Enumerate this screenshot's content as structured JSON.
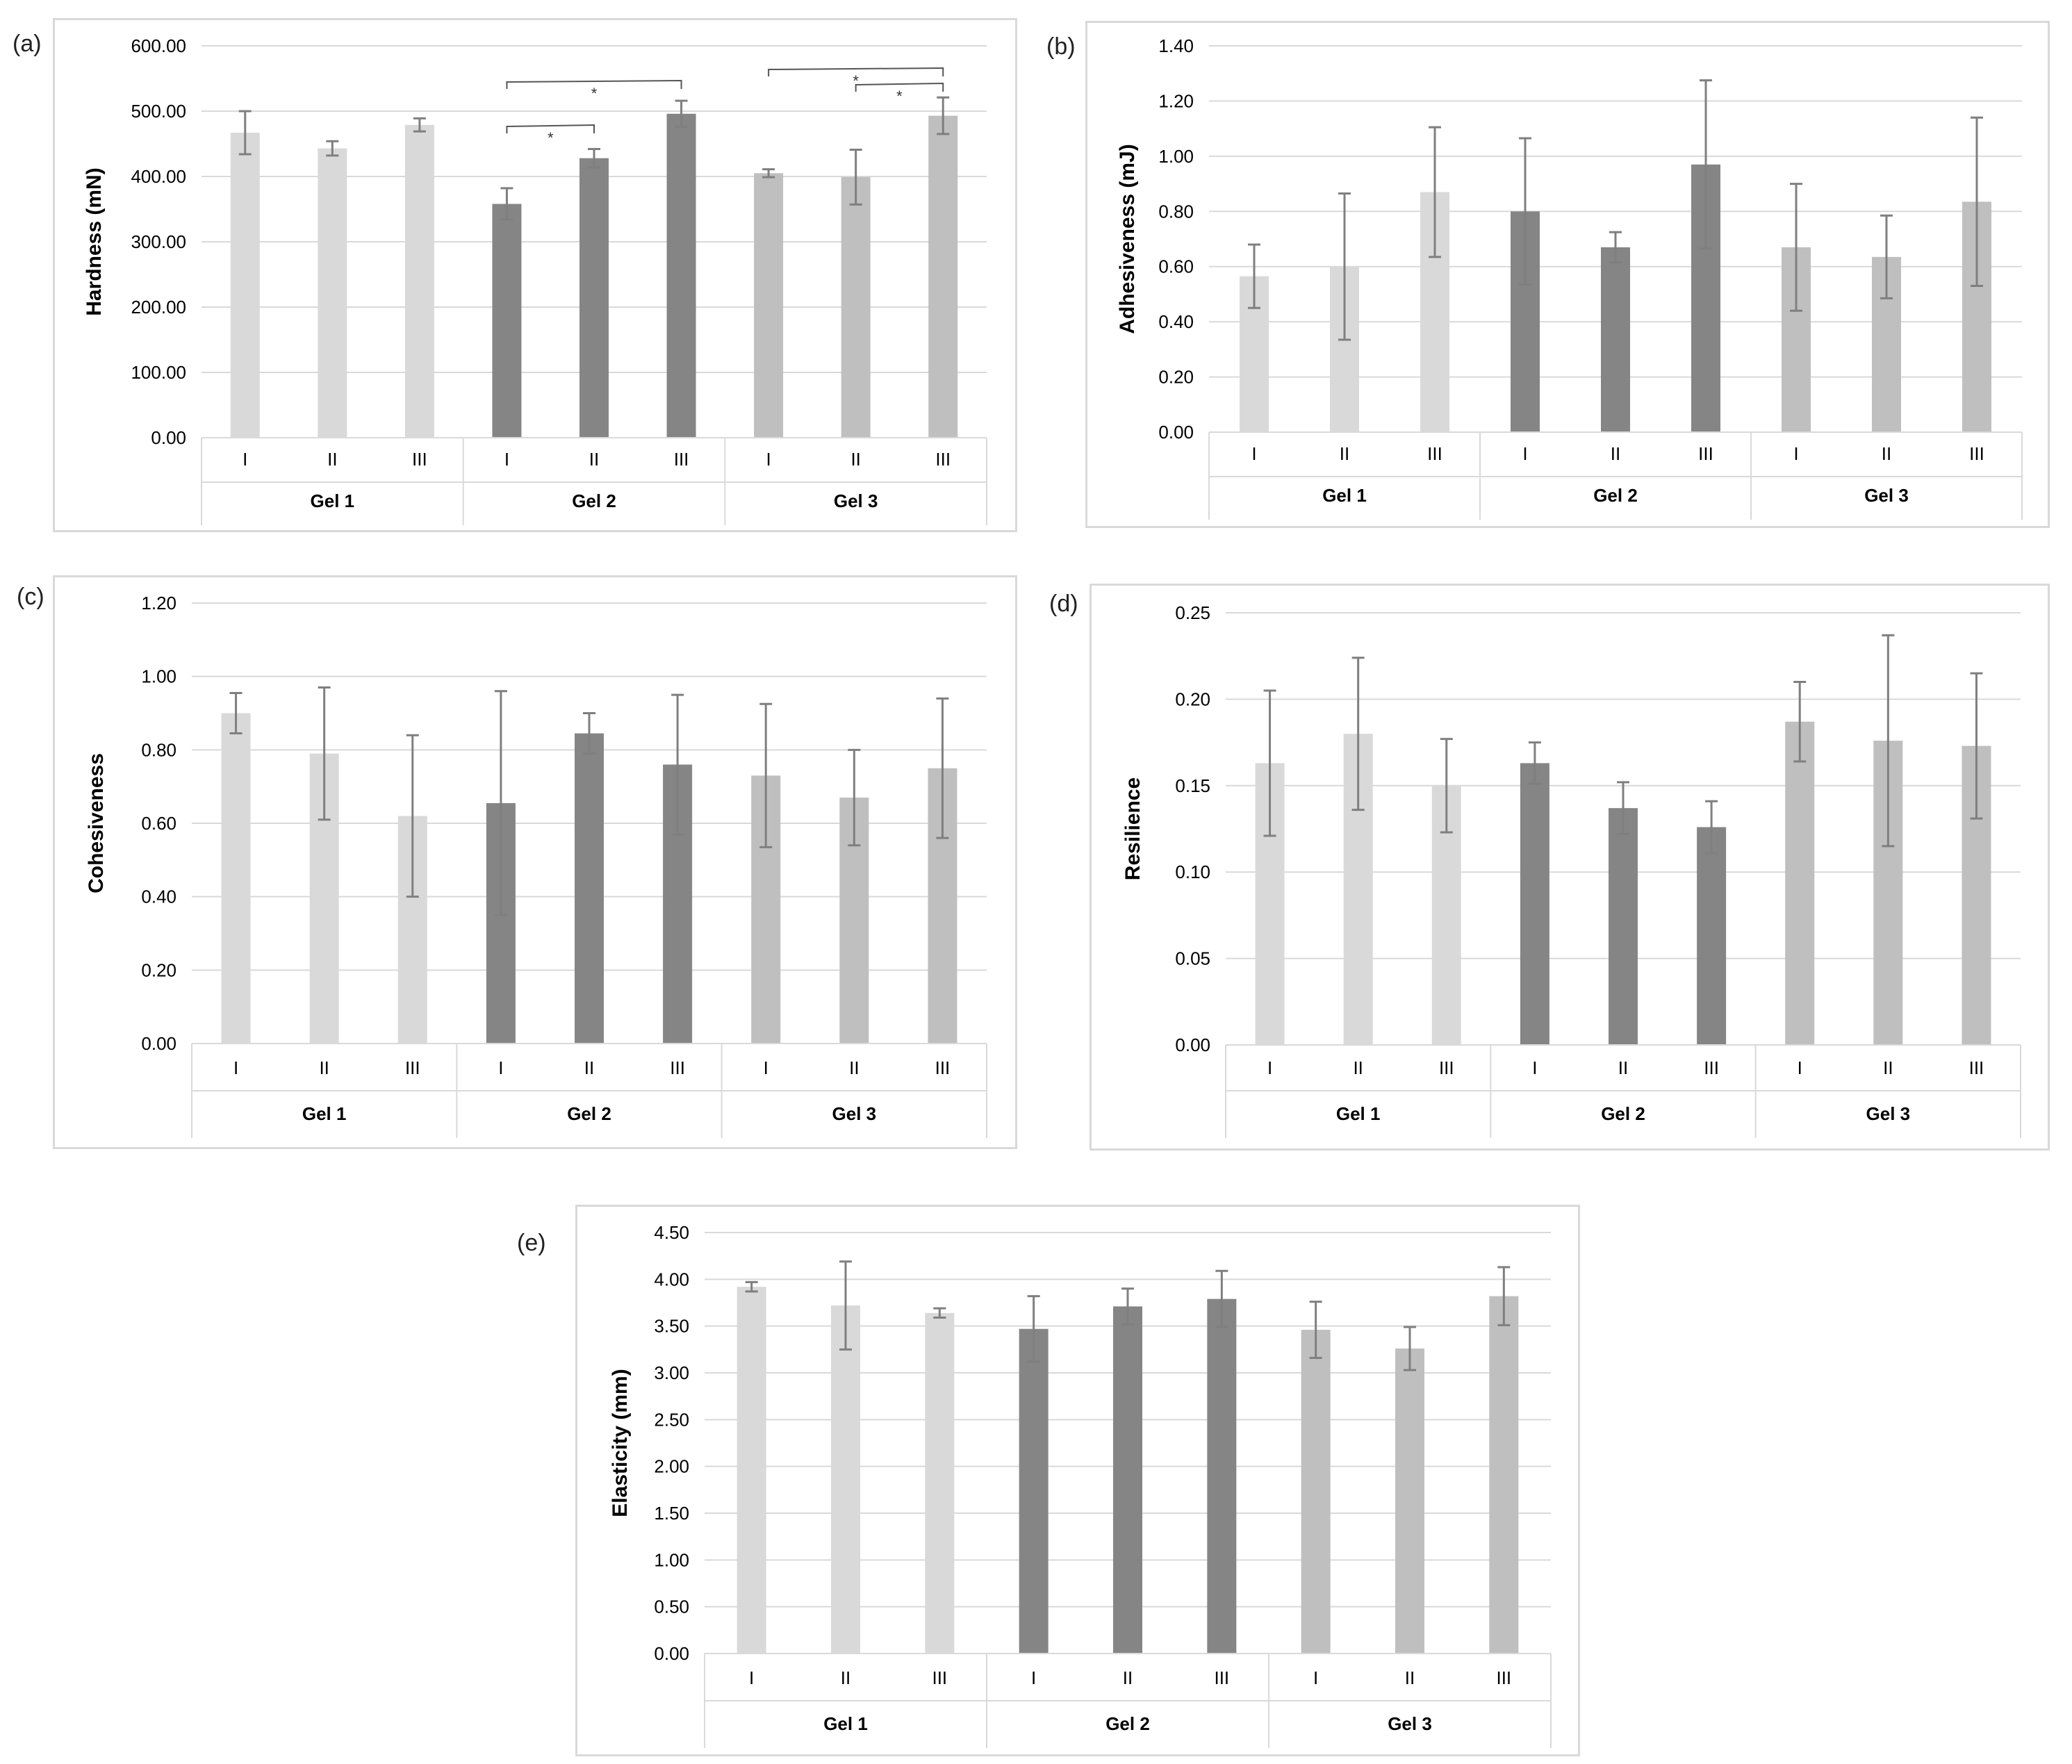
{
  "panel_labels": [
    "(a)",
    "(b)",
    "(c)",
    "(d)",
    "(e)"
  ],
  "colors": {
    "gel1": "#d9d9d9",
    "gel2": "#858585",
    "gel3": "#bfbfbf",
    "error_bar": "#7f7f7f",
    "grid": "#d9d9d9",
    "axis_text": "#000000"
  },
  "chart_data": [
    {
      "type": "bar",
      "ylabel": "Hardness (mN)",
      "ylim": [
        0,
        600
      ],
      "yticks": [
        "0.00",
        "100.00",
        "200.00",
        "300.00",
        "400.00",
        "500.00",
        "600.00"
      ],
      "groups": [
        "Gel 1",
        "Gel 2",
        "Gel 3"
      ],
      "categories": [
        "I",
        "II",
        "III"
      ],
      "values": [
        [
          467,
          443,
          479
        ],
        [
          358,
          428,
          496
        ],
        [
          405,
          399,
          493
        ]
      ],
      "errors": [
        [
          33,
          11,
          10
        ],
        [
          24,
          14,
          20
        ],
        [
          6,
          42,
          28
        ]
      ],
      "significance": [
        {
          "from": [
            1,
            0
          ],
          "to": [
            1,
            2
          ],
          "label": "*"
        },
        {
          "from": [
            1,
            0
          ],
          "to": [
            1,
            1
          ],
          "label": "*"
        },
        {
          "from": [
            2,
            0
          ],
          "to": [
            2,
            2
          ],
          "label": "*"
        },
        {
          "from": [
            2,
            1
          ],
          "to": [
            2,
            2
          ],
          "label": "*"
        }
      ],
      "grid": true
    },
    {
      "type": "bar",
      "ylabel": "Adhesiveness (mJ)",
      "ylim": [
        0,
        1.4
      ],
      "yticks": [
        "0.00",
        "0.20",
        "0.40",
        "0.60",
        "0.80",
        "1.00",
        "1.20",
        "1.40"
      ],
      "groups": [
        "Gel 1",
        "Gel 2",
        "Gel 3"
      ],
      "categories": [
        "I",
        "II",
        "III"
      ],
      "values": [
        [
          0.565,
          0.6,
          0.87
        ],
        [
          0.8,
          0.67,
          0.97
        ],
        [
          0.67,
          0.635,
          0.835
        ]
      ],
      "errors": [
        [
          0.115,
          0.265,
          0.235
        ],
        [
          0.265,
          0.055,
          0.305
        ],
        [
          0.23,
          0.15,
          0.305
        ]
      ],
      "grid": true
    },
    {
      "type": "bar",
      "ylabel": "Cohesiveness",
      "ylim": [
        0,
        1.2
      ],
      "yticks": [
        "0.00",
        "0.20",
        "0.40",
        "0.60",
        "0.80",
        "1.00",
        "1.20"
      ],
      "groups": [
        "Gel 1",
        "Gel 2",
        "Gel 3"
      ],
      "categories": [
        "I",
        "II",
        "III"
      ],
      "values": [
        [
          0.9,
          0.79,
          0.62
        ],
        [
          0.655,
          0.845,
          0.76
        ],
        [
          0.73,
          0.67,
          0.75
        ]
      ],
      "errors": [
        [
          0.055,
          0.18,
          0.22
        ],
        [
          0.305,
          0.055,
          0.19
        ],
        [
          0.195,
          0.13,
          0.19
        ]
      ],
      "grid": true
    },
    {
      "type": "bar",
      "ylabel": "Resilience",
      "ylim": [
        0,
        0.25
      ],
      "yticks": [
        "0.00",
        "0.05",
        "0.10",
        "0.15",
        "0.20",
        "0.25"
      ],
      "groups": [
        "Gel 1",
        "Gel 2",
        "Gel 3"
      ],
      "categories": [
        "I",
        "II",
        "III"
      ],
      "values": [
        [
          0.163,
          0.18,
          0.15
        ],
        [
          0.163,
          0.137,
          0.126
        ],
        [
          0.187,
          0.176,
          0.173
        ]
      ],
      "errors": [
        [
          0.042,
          0.044,
          0.027
        ],
        [
          0.012,
          0.015,
          0.015
        ],
        [
          0.023,
          0.061,
          0.042
        ]
      ],
      "grid": true
    },
    {
      "type": "bar",
      "ylabel": "Elasticity (mm)",
      "ylim": [
        0,
        4.5
      ],
      "yticks": [
        "0.00",
        "0.50",
        "1.00",
        "1.50",
        "2.00",
        "2.50",
        "3.00",
        "3.50",
        "4.00",
        "4.50"
      ],
      "groups": [
        "Gel 1",
        "Gel 2",
        "Gel 3"
      ],
      "categories": [
        "I",
        "II",
        "III"
      ],
      "values": [
        [
          3.92,
          3.72,
          3.64
        ],
        [
          3.47,
          3.71,
          3.79
        ],
        [
          3.46,
          3.26,
          3.82
        ]
      ],
      "errors": [
        [
          0.05,
          0.47,
          0.05
        ],
        [
          0.35,
          0.19,
          0.3
        ],
        [
          0.3,
          0.23,
          0.31
        ]
      ],
      "grid": true
    }
  ]
}
